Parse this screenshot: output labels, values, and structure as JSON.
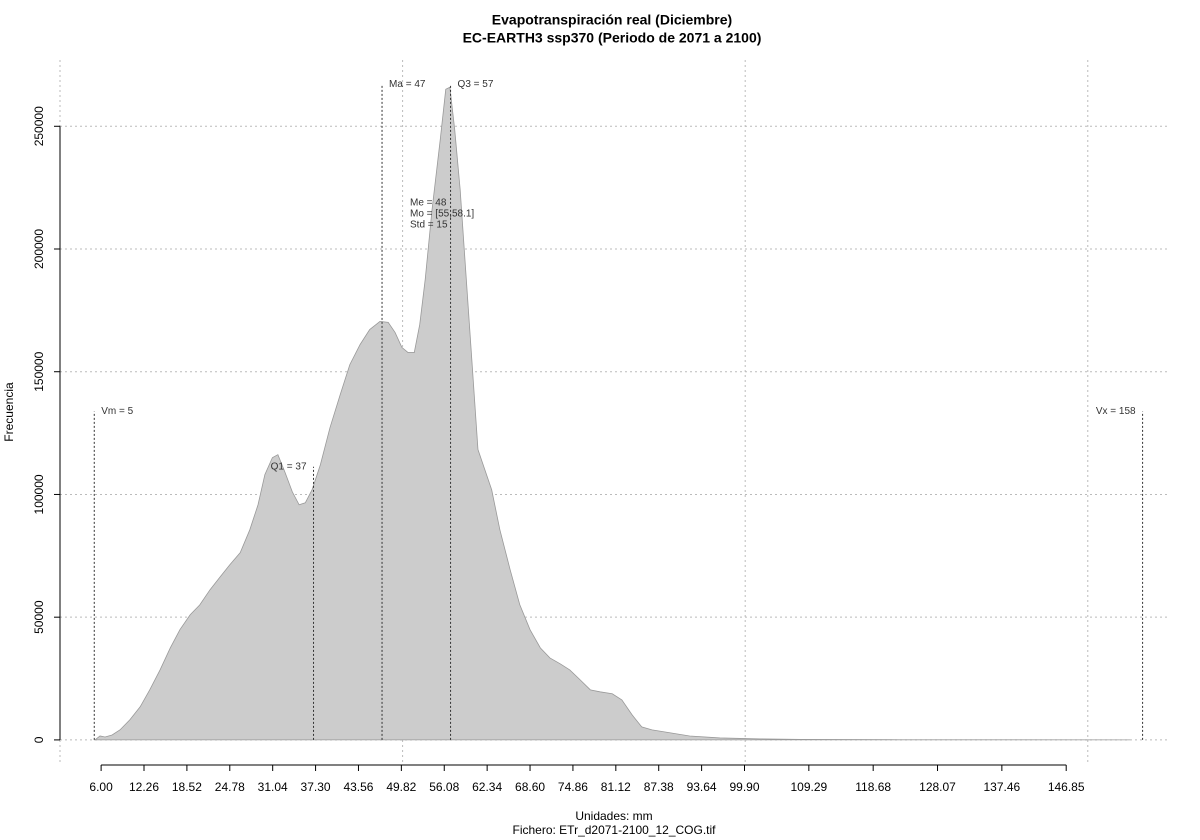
{
  "chart_data": {
    "type": "area",
    "title": "Evapotranspiración real (Diciembre)",
    "subtitle": "EC-EARTH3 ssp370 (Periodo de 2071 a 2100)",
    "x_label": "Unidades: mm",
    "file_label": "Fichero: ETr_d2071-2100_12_COG.tif",
    "y_label": "Frecuencia",
    "color": "#cccccc",
    "line_color": "#999999",
    "grid": true,
    "xlim": [
      0,
      162
    ],
    "ylim": [
      -9000,
      277000
    ],
    "xgrid": [
      0,
      50,
      100,
      150
    ],
    "xticks": [
      {
        "value": 6,
        "label": "6.00"
      },
      12.26,
      18.52,
      24.78,
      31.04,
      {
        "value": 37.3,
        "label": "37.30"
      },
      43.56,
      49.82,
      56.08,
      62.34,
      {
        "value": 68.6,
        "label": "68.60"
      },
      74.86,
      81.12,
      87.38,
      93.64,
      {
        "value": 99.9,
        "label": "99.90"
      },
      109.29,
      118.68,
      128.07,
      137.46,
      146.85
    ],
    "yticks": [
      0,
      50000,
      100000,
      150000,
      200000,
      250000
    ],
    "x": [
      5.1,
      5.84,
      6.57,
      7.6,
      8.76,
      10.2,
      11.7,
      13.1,
      14.6,
      16.1,
      17.5,
      19.0,
      20.4,
      21.9,
      23.4,
      24.8,
      26.3,
      27.7,
      28.9,
      29.9,
      31.0,
      31.8,
      32.8,
      33.9,
      34.9,
      35.8,
      36.8,
      38.0,
      39.4,
      40.9,
      42.3,
      43.8,
      45.2,
      46.7,
      47.9,
      48.9,
      49.9,
      50.8,
      51.7,
      52.5,
      53.3,
      54.3,
      55.5,
      56.3,
      56.9,
      57.6,
      58.4,
      59.1,
      60.1,
      61.0,
      62.0,
      63.0,
      64.2,
      65.7,
      67.1,
      68.6,
      70.1,
      71.5,
      73.0,
      74.4,
      75.9,
      77.4,
      78.8,
      80.6,
      82.0,
      83.5,
      84.9,
      86.4,
      89.0,
      91.9,
      96.3,
      102.2,
      108,
      122.6,
      137.2,
      156.2
    ],
    "values": [
      0,
      1600,
      1200,
      2000,
      4100,
      8200,
      13500,
      20400,
      28500,
      37500,
      44900,
      51000,
      55000,
      61200,
      66500,
      71400,
      76300,
      85600,
      95800,
      108100,
      115000,
      116200,
      109300,
      101100,
      95800,
      96600,
      102000,
      112100,
      127200,
      140700,
      152900,
      161100,
      167200,
      170500,
      170100,
      166000,
      159900,
      157800,
      157800,
      169200,
      187600,
      216100,
      244700,
      265100,
      265900,
      248800,
      224300,
      195700,
      155000,
      118300,
      110100,
      101900,
      85600,
      69300,
      55100,
      44900,
      37500,
      33400,
      31000,
      28500,
      24500,
      20400,
      19600,
      18800,
      16300,
      10200,
      5300,
      4100,
      2900,
      1600,
      800,
      400,
      200,
      80,
      40,
      0
    ],
    "annotations": [
      {
        "label": "Vm = 5",
        "x": 5,
        "y": 133800
      },
      {
        "label": "Q1 = 37",
        "x": 37,
        "y": 111300
      },
      {
        "label": "Ma = 47",
        "x": 47,
        "y": 267100
      },
      {
        "label": "Q3 = 57",
        "x": 57,
        "y": 267100
      },
      {
        "label": "Vx = 158",
        "x": 158,
        "y": 133800
      }
    ],
    "stats": [
      "Me = 48",
      "Mo = [55,58.1]",
      "Std = 15"
    ]
  }
}
